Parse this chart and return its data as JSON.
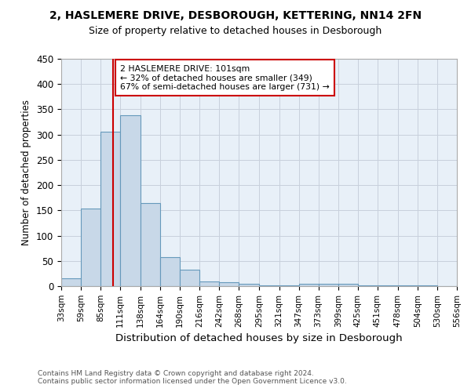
{
  "title1": "2, HASLEMERE DRIVE, DESBOROUGH, KETTERING, NN14 2FN",
  "title2": "Size of property relative to detached houses in Desborough",
  "xlabel": "Distribution of detached houses by size in Desborough",
  "ylabel": "Number of detached properties",
  "footnote1": "Contains HM Land Registry data © Crown copyright and database right 2024.",
  "footnote2": "Contains public sector information licensed under the Open Government Licence v3.0.",
  "bar_edges": [
    33,
    59,
    85,
    111,
    138,
    164,
    190,
    216,
    242,
    268,
    295,
    321,
    347,
    373,
    399,
    425,
    451,
    478,
    504,
    530,
    556
  ],
  "bar_heights": [
    15,
    153,
    305,
    339,
    165,
    57,
    33,
    9,
    7,
    5,
    2,
    2,
    5,
    5,
    5,
    2,
    1,
    1,
    1,
    0,
    3
  ],
  "bar_color": "#c8d8e8",
  "bar_edge_color": "#6699bb",
  "property_size": 101,
  "property_line_color": "#cc0000",
  "annotation_line1": "2 HASLEMERE DRIVE: 101sqm",
  "annotation_line2": "← 32% of detached houses are smaller (349)",
  "annotation_line3": "67% of semi-detached houses are larger (731) →",
  "annotation_box_color": "#cc0000",
  "xlim": [
    33,
    556
  ],
  "ylim": [
    0,
    450
  ],
  "yticks": [
    0,
    50,
    100,
    150,
    200,
    250,
    300,
    350,
    400,
    450
  ],
  "background_color": "#ffffff",
  "ax_background_color": "#e8f0f8",
  "grid_color": "#c8d0dc"
}
